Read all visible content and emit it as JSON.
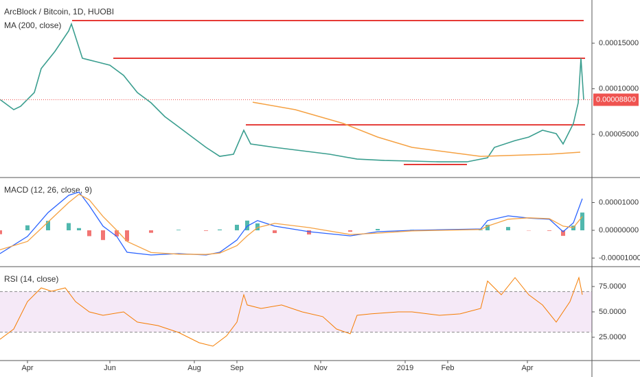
{
  "chart_data": [
    {
      "type": "price",
      "title": "ArcBlock / Bitcoin, 1D, HUOBI",
      "xlim": [
        0,
        431
      ],
      "ylim": [
        3.4e-06,
        0.0001974
      ],
      "yticks": [
        {
          "value": 5e-05,
          "label": "0.00005000"
        },
        {
          "value": 0.0001,
          "label": "0.00010000"
        },
        {
          "value": 0.00015,
          "label": "0.00015000"
        }
      ],
      "last_price": {
        "value": 8.8e-05,
        "label": "0.00008800"
      },
      "last_color": "#ef5350",
      "series": [
        {
          "color": "#3a9e8f",
          "x": [
            0,
            10,
            15,
            25,
            30,
            40,
            50,
            52,
            60,
            70,
            80,
            90,
            100,
            110,
            120,
            130,
            140,
            150,
            160,
            170,
            177.5,
            182.5,
            200,
            220,
            240,
            260,
            280,
            300,
            320,
            340,
            355,
            360,
            375,
            385,
            395,
            405,
            410,
            417.5,
            421,
            423,
            424,
            425
          ],
          "values": [
            8.83e-05,
            7.71e-05,
            8.08e-05,
            9.59e-05,
            0.0001222,
            0.000141,
            0.0001635,
            0.0001711,
            0.0001335,
            0.0001297,
            0.0001259,
            0.0001147,
            9.59e-05,
            8.46e-05,
            6.95e-05,
            5.83e-05,
            4.7e-05,
            3.57e-05,
            2.59e-05,
            2.82e-05,
            5.45e-05,
            3.95e-05,
            3.57e-05,
            3.2e-05,
            2.82e-05,
            2.29e-05,
            2.14e-05,
            2.07e-05,
            1.99e-05,
            1.99e-05,
            2.44e-05,
            3.57e-05,
            4.32e-05,
            4.7e-05,
            5.45e-05,
            5.08e-05,
            3.95e-05,
            6.2e-05,
            8.46e-05,
            0.0001335,
            0.0001109,
            8.8e-05
          ]
        },
        {
          "name": "MA (200, close)",
          "color": "#f5a142",
          "x": [
            184,
            215,
            250,
            275,
            300,
            350,
            400,
            422.5
          ],
          "values": [
            8.53e-05,
            7.71e-05,
            6.2e-05,
            4.7e-05,
            3.57e-05,
            2.59e-05,
            2.82e-05,
            3.05e-05
          ]
        }
      ],
      "level_color": "#e53935",
      "levels": [
        {
          "x": [
            52.5,
            425
          ],
          "value": 0.0001748
        },
        {
          "x": [
            82.5,
            426
          ],
          "value": 0.0001335
        },
        {
          "x": [
            179,
            426
          ],
          "value": 6.05e-05
        },
        {
          "x": [
            294,
            340
          ],
          "value": 1.69e-05
        }
      ]
    },
    {
      "type": "macd",
      "title": "MACD (12, 26, close, 9)",
      "xlim": [
        0,
        431
      ],
      "ylim": [
        -1.284e-05,
        1.877e-05
      ],
      "yticks": [
        {
          "value": -1e-05,
          "label": "-0.00001000"
        },
        {
          "value": 0,
          "label": "0.00000000"
        },
        {
          "value": 1e-05,
          "label": "0.00001000"
        }
      ],
      "x": [
        0,
        20,
        35,
        50,
        57.5,
        65,
        75,
        85,
        92.5,
        110,
        130,
        150,
        160,
        172.5,
        180,
        187.5,
        200,
        225,
        255,
        275,
        300,
        350,
        355,
        370,
        385,
        400,
        410,
        417.5,
        424
      ],
      "series": [
        {
          "color": "#2962ff",
          "values": [
            -8.4e-06,
            -2.2e-06,
            6.4e-06,
            1.26e-05,
            1.38e-05,
            8.9e-06,
            1.5e-06,
            -2.2e-06,
            -7.9e-06,
            -8.9e-06,
            -8.4e-06,
            -8.9e-06,
            -7.9e-06,
            -3.5e-06,
            1.5e-06,
            3.5e-06,
            1.5e-06,
            -5e-07,
            -2e-06,
            -5e-07,
            0,
            5e-07,
            3.5e-06,
            5.2e-06,
            4.4e-06,
            4e-06,
            -5e-07,
            2.7e-06,
            1.14e-05
          ]
        },
        {
          "color": "#f5a142",
          "values": [
            -7e-06,
            -4e-06,
            3e-06,
            1e-05,
            1.3e-05,
            1.1e-05,
            5e-06,
            0,
            -4e-06,
            -8e-06,
            -8.6e-06,
            -8.7e-06,
            -8.2e-06,
            -5.5e-06,
            -2e-06,
            1e-06,
            2.5e-06,
            1e-06,
            -1.5e-06,
            -1e-06,
            -2e-07,
            3e-07,
            1.5e-06,
            4e-06,
            4.5e-06,
            4.2e-06,
            1.5e-06,
            1e-06,
            5e-06
          ]
        }
      ],
      "histogram": [
        -1.4e-06,
        1.8e-06,
        3.4e-06,
        2.6e-06,
        8e-07,
        -2.1e-06,
        -3.5e-06,
        -2.2e-06,
        -3.9e-06,
        -9e-07,
        2e-07,
        -2e-07,
        3e-07,
        2e-06,
        3.5e-06,
        2.5e-06,
        -1e-06,
        -1.5e-06,
        -5e-07,
        5e-07,
        2e-07,
        2e-07,
        2e-06,
        1.2e-06,
        -1e-07,
        -2e-07,
        -2e-06,
        1.7e-06,
        6.4e-06
      ],
      "positive_color": "#26a69a",
      "negative_color": "#ef5350"
    },
    {
      "type": "rsi",
      "title": "RSI (14, close)",
      "xlim": [
        0,
        431
      ],
      "ylim": [
        2.7,
        93.9
      ],
      "yticks": [
        {
          "value": 25,
          "label": "25.0000"
        },
        {
          "value": 50,
          "label": "50.0000"
        },
        {
          "value": 75,
          "label": "75.0000"
        }
      ],
      "bands": [
        30,
        70
      ],
      "band_color": "#9c27b0",
      "xticks": [
        {
          "value": 20,
          "label": "Apr"
        },
        {
          "value": 80,
          "label": "Jun"
        },
        {
          "value": 141.5,
          "label": "Aug"
        },
        {
          "value": 172.5,
          "label": "Sep"
        },
        {
          "value": 233.5,
          "label": "Nov"
        },
        {
          "value": 295,
          "label": "2019"
        },
        {
          "value": 326,
          "label": "Feb"
        },
        {
          "value": 384,
          "label": "Apr"
        }
      ],
      "series": [
        {
          "color": "#f57c00",
          "x": [
            0,
            10,
            20,
            30,
            37.5,
            47.5,
            55,
            65,
            75,
            90,
            100,
            115,
            130,
            145,
            155,
            165,
            172.5,
            177.5,
            180,
            190,
            205,
            220,
            235,
            245,
            255,
            260,
            270,
            290,
            300,
            320,
            335,
            350,
            355,
            365,
            375,
            385,
            395,
            405,
            415,
            421.5,
            424
          ],
          "values": [
            23,
            33.1,
            60.1,
            73.6,
            70.3,
            73.6,
            60.1,
            50,
            46.6,
            50,
            39.9,
            36.5,
            29.7,
            19.6,
            16.2,
            26.4,
            39.9,
            66.9,
            56.8,
            53.4,
            56.8,
            50,
            45.3,
            33.1,
            28.4,
            46.6,
            48,
            50,
            50,
            46.6,
            48,
            53.4,
            80.4,
            66.9,
            83.8,
            66.9,
            56.8,
            39.9,
            60.1,
            83.8,
            66.9
          ]
        }
      ]
    }
  ]
}
